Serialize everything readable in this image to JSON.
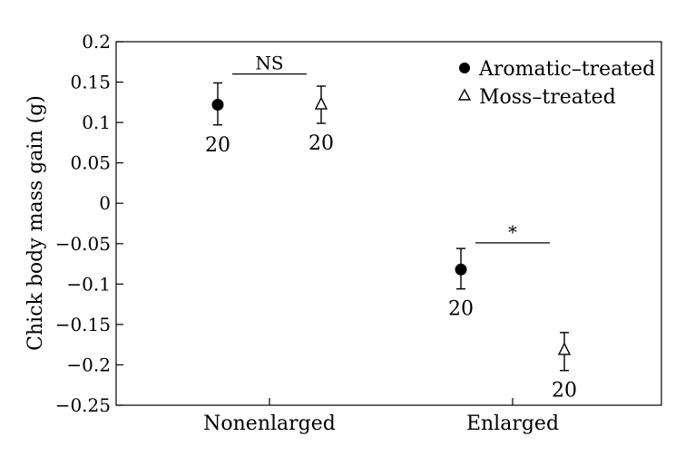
{
  "chart_data": {
    "type": "scatter",
    "title": "",
    "xlabel": "",
    "ylabel": "Chick body mass gain (g)",
    "ylim": [
      -0.25,
      0.2
    ],
    "yticks": [
      0.2,
      0.15,
      0.1,
      0.05,
      0,
      -0.05,
      -0.1,
      -0.15,
      -0.2,
      -0.25
    ],
    "ytick_labels": [
      "0.2",
      "0.15",
      "0.1",
      "0.05",
      "0",
      "−0.05",
      "−0.1",
      "−0.15",
      "−0.2",
      "−0.25"
    ],
    "categories": [
      "Nonenlarged",
      "Enlarged"
    ],
    "grid": false,
    "legend_position": "top-right",
    "series": [
      {
        "name": "Aromatic–treated",
        "marker": "filled-circle",
        "color": "#000000",
        "values": [
          0.122,
          -0.082
        ],
        "error_low": [
          0.097,
          -0.106
        ],
        "error_high": [
          0.149,
          -0.056
        ],
        "n_labels": [
          "20",
          "20"
        ]
      },
      {
        "name": "Moss–treated",
        "marker": "open-triangle",
        "color": "#000000",
        "values": [
          0.122,
          -0.182
        ],
        "error_low": [
          0.099,
          -0.207
        ],
        "error_high": [
          0.145,
          -0.16
        ],
        "n_labels": [
          "20",
          "20"
        ]
      }
    ],
    "annotations": [
      {
        "category": "Nonenlarged",
        "text": "NS",
        "y": 0.16
      },
      {
        "category": "Enlarged",
        "text": "*",
        "y": -0.049
      }
    ]
  }
}
